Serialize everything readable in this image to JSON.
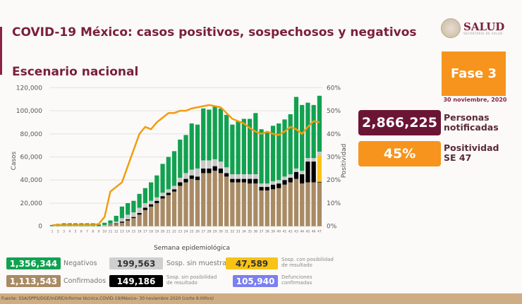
{
  "header": {
    "title": "COVID-19 México: casos positivos, sospechosos y negativos",
    "subtitle": "Escenario nacional",
    "logo_text": "SALUD",
    "logo_subtext": "SECRETARÍA DE SALUD"
  },
  "panel": {
    "phase": "Fase 3",
    "date": "30 noviembre, 2020",
    "notified_value": "2,866,225",
    "notified_label_1": "Personas",
    "notified_label_2": "notificadas",
    "positivity_value": "45%",
    "positivity_label_1": "Positividad",
    "positivity_label_2": "SE 47"
  },
  "legend": [
    {
      "value": "1,356,344",
      "label": "Negativos",
      "color": "#12a150"
    },
    {
      "value": "199,563",
      "label": "Sosp. sin muestra",
      "color": "#c8c8c8"
    },
    {
      "value": "47,589",
      "label_1": "Sosp. con posibilidad",
      "label_2": "de resultado",
      "color": "#f9c316"
    },
    {
      "value": "1,113,543",
      "label": "Confirmados",
      "color": "#a88a64"
    },
    {
      "value": "149,186",
      "label_1": "Sosp. sin posibilidad",
      "label_2": "de resultado",
      "color": "#000000"
    },
    {
      "value": "105,940",
      "label_1": "Defunciones",
      "label_2": "confirmadas",
      "color": "#7b7ff0"
    }
  ],
  "footer": "Fuente: SSA/SPPS/DGE/InDRE/Informe técnico.COVID-19/México- 30 noviembre 2020 (corte 9:00hrs)",
  "chart_data": {
    "type": "bar",
    "stacked": true,
    "xlabel": "Semana epidemiológica",
    "ylabel": "Casos",
    "y2label": "Positividad",
    "ylim": [
      0,
      120000
    ],
    "y2lim": [
      0,
      60
    ],
    "yticks": [
      "0",
      "20,000",
      "40,000",
      "60,000",
      "80,000",
      "100,000",
      "120,000"
    ],
    "y2ticks": [
      "0%",
      "10%",
      "20%",
      "30%",
      "40%",
      "50%",
      "60%"
    ],
    "grid": true,
    "categories": [
      1,
      2,
      3,
      4,
      5,
      6,
      7,
      8,
      9,
      10,
      11,
      12,
      13,
      14,
      15,
      16,
      17,
      18,
      19,
      20,
      21,
      22,
      23,
      24,
      25,
      26,
      27,
      28,
      29,
      30,
      31,
      32,
      33,
      34,
      35,
      36,
      37,
      38,
      39,
      40,
      41,
      42,
      43,
      44,
      45,
      46,
      47
    ],
    "series": [
      {
        "name": "Confirmados",
        "color": "#a88a64",
        "values": [
          0,
          0,
          0,
          0,
          0,
          0,
          0,
          0,
          0,
          500,
          1000,
          2000,
          3000,
          5000,
          7000,
          10000,
          14000,
          17000,
          20000,
          24000,
          27000,
          30000,
          35000,
          38000,
          41000,
          40000,
          46000,
          46000,
          48000,
          46000,
          43000,
          38000,
          38000,
          38000,
          37000,
          37000,
          31000,
          31000,
          32000,
          33000,
          36000,
          38000,
          41000,
          37000,
          38000,
          38000,
          38000
        ]
      },
      {
        "name": "Sosp. sin posibilidad de resultado",
        "color": "#000000",
        "values": [
          0,
          0,
          0,
          0,
          0,
          0,
          0,
          0,
          0,
          0,
          300,
          500,
          1000,
          1000,
          1000,
          1500,
          2000,
          2000,
          2000,
          2000,
          2000,
          2000,
          3000,
          3000,
          3000,
          3000,
          4000,
          4000,
          4000,
          4000,
          3000,
          3000,
          3000,
          3000,
          4000,
          4000,
          3000,
          3000,
          4000,
          4000,
          4000,
          4000,
          6000,
          8000,
          18000,
          18000,
          500
        ]
      },
      {
        "name": "Sosp. con posibilidad de resultado",
        "color": "#f9c316",
        "values": [
          0,
          0,
          0,
          0,
          0,
          0,
          0,
          0,
          0,
          0,
          0,
          0,
          0,
          0,
          0,
          0,
          0,
          0,
          0,
          0,
          0,
          0,
          0,
          0,
          0,
          0,
          0,
          0,
          0,
          0,
          0,
          0,
          0,
          0,
          0,
          0,
          0,
          0,
          0,
          0,
          0,
          0,
          0,
          0,
          0,
          0,
          23000
        ]
      },
      {
        "name": "Sosp. sin muestra",
        "color": "#c8c8c8",
        "values": [
          0,
          0,
          0,
          0,
          0,
          0,
          0,
          0,
          0,
          500,
          700,
          1500,
          3000,
          4000,
          4000,
          4500,
          4000,
          3000,
          3000,
          3000,
          3000,
          3000,
          4000,
          5000,
          5000,
          7000,
          7000,
          7000,
          6000,
          6000,
          5000,
          4000,
          4000,
          4000,
          4000,
          4000,
          3000,
          3000,
          3000,
          3000,
          3000,
          3000,
          3000,
          3000,
          3000,
          3000,
          3000
        ]
      },
      {
        "name": "Negativos",
        "color": "#12a150",
        "values": [
          1000,
          2000,
          2500,
          2500,
          2500,
          2500,
          2500,
          2500,
          1500,
          2000,
          3000,
          5000,
          10000,
          10000,
          10000,
          12000,
          13000,
          16000,
          19000,
          25000,
          28000,
          30000,
          33000,
          33000,
          40000,
          38000,
          45000,
          44000,
          46000,
          46000,
          45500,
          43000,
          46000,
          48000,
          48000,
          53000,
          47000,
          44000,
          48000,
          49000,
          49500,
          52000,
          62000,
          57000,
          48000,
          46000,
          48500
        ]
      }
    ],
    "line": {
      "name": "Positividad",
      "color": "#f39c12",
      "axis": "y2",
      "values": [
        0.5,
        0.5,
        0.5,
        0.5,
        0.5,
        0.5,
        0.5,
        0.5,
        1,
        4,
        15,
        17,
        19,
        26,
        33,
        40,
        43,
        42,
        45,
        47,
        49,
        49,
        50,
        50,
        51,
        51.5,
        52,
        52.5,
        52,
        51.5,
        49,
        46.5,
        45.5,
        44.5,
        42.5,
        41,
        40,
        41,
        40,
        39.5,
        41,
        43,
        42,
        40,
        43,
        45.5,
        45
      ]
    }
  }
}
